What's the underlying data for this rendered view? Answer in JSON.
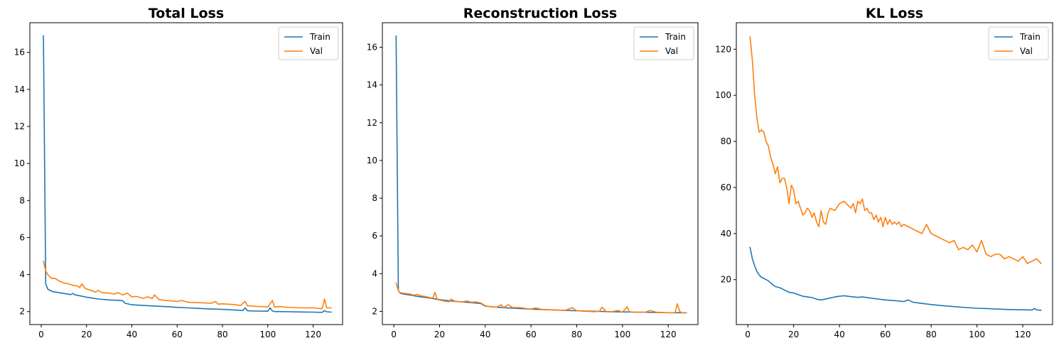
{
  "colors": {
    "train": "#1f77b4",
    "val": "#ff7f0e"
  },
  "chart_data": [
    {
      "type": "line",
      "title": "Total Loss",
      "xlim": [
        -5,
        133
      ],
      "ylim": [
        1.3,
        17.6
      ],
      "xticks": [
        0,
        20,
        40,
        60,
        80,
        100,
        120
      ],
      "yticks": [
        2,
        4,
        6,
        8,
        10,
        12,
        14,
        16
      ],
      "legend_position": "top-right",
      "series": [
        {
          "name": "Train",
          "color": "#1f77b4",
          "x": [
            1,
            2,
            3,
            5,
            7,
            10,
            12,
            13,
            14,
            15,
            16,
            20,
            25,
            30,
            35,
            36,
            37,
            40,
            45,
            50,
            55,
            60,
            65,
            70,
            75,
            80,
            85,
            89,
            90,
            91,
            92,
            95,
            100,
            101,
            102,
            103,
            105,
            110,
            115,
            120,
            124,
            125,
            126,
            128
          ],
          "y": [
            16.9,
            3.5,
            3.2,
            3.08,
            3.04,
            2.98,
            2.94,
            2.92,
            2.98,
            2.9,
            2.88,
            2.78,
            2.68,
            2.63,
            2.6,
            2.58,
            2.45,
            2.37,
            2.33,
            2.3,
            2.27,
            2.23,
            2.2,
            2.17,
            2.14,
            2.12,
            2.09,
            2.06,
            2.2,
            2.05,
            2.04,
            2.03,
            2.02,
            2.2,
            2.04,
            2.0,
            2.0,
            1.99,
            1.98,
            1.97,
            1.96,
            2.05,
            1.99,
            1.97
          ]
        },
        {
          "name": "Val",
          "color": "#ff7f0e",
          "x": [
            1,
            2,
            3,
            4,
            5,
            6,
            7,
            8,
            10,
            12,
            14,
            16,
            17,
            18,
            19,
            20,
            22,
            24,
            25,
            27,
            30,
            32,
            34,
            36,
            38,
            40,
            42,
            45,
            47,
            49,
            50,
            52,
            55,
            60,
            62,
            65,
            70,
            75,
            77,
            78,
            80,
            85,
            88,
            90,
            91,
            93,
            95,
            100,
            102,
            103,
            105,
            110,
            115,
            120,
            124,
            125,
            126,
            128
          ],
          "y": [
            4.72,
            4.2,
            3.98,
            3.85,
            3.78,
            3.8,
            3.72,
            3.65,
            3.55,
            3.5,
            3.42,
            3.38,
            3.3,
            3.5,
            3.3,
            3.22,
            3.15,
            3.05,
            3.15,
            3.02,
            3.0,
            2.95,
            3.02,
            2.9,
            3.0,
            2.8,
            2.82,
            2.72,
            2.8,
            2.7,
            2.9,
            2.65,
            2.6,
            2.55,
            2.6,
            2.5,
            2.48,
            2.45,
            2.55,
            2.4,
            2.42,
            2.38,
            2.33,
            2.55,
            2.32,
            2.3,
            2.28,
            2.25,
            2.6,
            2.25,
            2.27,
            2.22,
            2.2,
            2.2,
            2.15,
            2.68,
            2.2,
            2.2
          ]
        }
      ]
    },
    {
      "type": "line",
      "title": "Reconstruction Loss",
      "xlim": [
        -5,
        133
      ],
      "ylim": [
        1.3,
        17.3
      ],
      "xticks": [
        0,
        20,
        40,
        60,
        80,
        100,
        120
      ],
      "yticks": [
        2,
        4,
        6,
        8,
        10,
        12,
        14,
        16
      ],
      "legend_position": "top-right",
      "series": [
        {
          "name": "Train",
          "color": "#1f77b4",
          "x": [
            1,
            2,
            3,
            5,
            8,
            10,
            15,
            20,
            25,
            30,
            35,
            38,
            40,
            45,
            50,
            55,
            60,
            65,
            70,
            75,
            80,
            85,
            90,
            95,
            100,
            105,
            110,
            115,
            120,
            125,
            128
          ],
          "y": [
            16.6,
            3.1,
            2.95,
            2.9,
            2.85,
            2.8,
            2.72,
            2.62,
            2.55,
            2.5,
            2.45,
            2.42,
            2.28,
            2.22,
            2.18,
            2.15,
            2.12,
            2.1,
            2.07,
            2.05,
            2.03,
            2.01,
            2.0,
            1.98,
            1.97,
            1.96,
            1.95,
            1.94,
            1.93,
            1.93,
            1.92
          ]
        },
        {
          "name": "Val",
          "color": "#ff7f0e",
          "x": [
            1,
            2,
            3,
            5,
            7,
            9,
            10,
            12,
            14,
            16,
            17,
            18,
            19,
            20,
            22,
            24,
            25,
            27,
            30,
            32,
            34,
            36,
            38,
            40,
            42,
            45,
            47,
            48,
            50,
            52,
            55,
            58,
            60,
            62,
            65,
            70,
            75,
            78,
            80,
            85,
            88,
            90,
            91,
            93,
            95,
            98,
            100,
            102,
            103,
            105,
            110,
            112,
            115,
            120,
            123,
            124,
            125,
            126,
            128
          ],
          "y": [
            3.5,
            3.1,
            2.98,
            2.95,
            2.92,
            2.85,
            2.9,
            2.82,
            2.78,
            2.72,
            2.7,
            3.0,
            2.62,
            2.6,
            2.55,
            2.5,
            2.65,
            2.52,
            2.5,
            2.55,
            2.48,
            2.5,
            2.45,
            2.3,
            2.25,
            2.22,
            2.35,
            2.2,
            2.35,
            2.2,
            2.2,
            2.15,
            2.12,
            2.18,
            2.1,
            2.08,
            2.05,
            2.2,
            2.03,
            2.0,
            1.98,
            2.02,
            2.22,
            1.98,
            1.97,
            2.05,
            1.95,
            2.25,
            1.98,
            1.96,
            1.95,
            2.05,
            1.95,
            1.93,
            1.93,
            2.4,
            2.0,
            1.92,
            1.92
          ]
        }
      ]
    },
    {
      "type": "line",
      "title": "KL Loss",
      "xlim": [
        -5,
        133
      ],
      "ylim": [
        0.5,
        131.5
      ],
      "xticks": [
        0,
        20,
        40,
        60,
        80,
        100,
        120
      ],
      "yticks": [
        20,
        40,
        60,
        80,
        100,
        120
      ],
      "legend_position": "top-right",
      "series": [
        {
          "name": "Train",
          "color": "#1f77b4",
          "x": [
            1,
            2,
            3,
            4,
            5,
            6,
            7,
            8,
            9,
            10,
            12,
            14,
            16,
            18,
            20,
            22,
            24,
            26,
            28,
            30,
            32,
            35,
            38,
            40,
            42,
            45,
            48,
            50,
            55,
            60,
            65,
            68,
            70,
            72,
            75,
            80,
            85,
            90,
            95,
            100,
            105,
            110,
            115,
            120,
            124,
            125,
            126,
            128
          ],
          "y": [
            34,
            29,
            26,
            23.5,
            22,
            21,
            20.5,
            20,
            19.5,
            18.5,
            17,
            16.5,
            15.5,
            14.5,
            14.2,
            13.5,
            12.8,
            12.5,
            12.2,
            11.5,
            11.2,
            11.8,
            12.5,
            12.8,
            13,
            12.6,
            12.3,
            12.5,
            11.8,
            11.2,
            10.8,
            10.5,
            11.2,
            10.2,
            9.8,
            9.2,
            8.7,
            8.3,
            7.9,
            7.6,
            7.4,
            7.2,
            7,
            6.9,
            6.8,
            7.5,
            6.9,
            6.7
          ]
        },
        {
          "name": "Val",
          "color": "#ff7f0e",
          "x": [
            1,
            2,
            3,
            4,
            5,
            6,
            7,
            8,
            9,
            10,
            11,
            12,
            13,
            14,
            15,
            16,
            17,
            18,
            19,
            20,
            21,
            22,
            23,
            24,
            25,
            26,
            27,
            28,
            29,
            30,
            31,
            32,
            33,
            34,
            35,
            36,
            38,
            40,
            42,
            44,
            45,
            46,
            47,
            48,
            49,
            50,
            51,
            52,
            53,
            54,
            55,
            56,
            57,
            58,
            59,
            60,
            61,
            62,
            63,
            64,
            65,
            66,
            67,
            68,
            70,
            72,
            74,
            76,
            78,
            80,
            82,
            84,
            86,
            88,
            90,
            92,
            94,
            96,
            98,
            100,
            102,
            104,
            106,
            108,
            110,
            112,
            114,
            116,
            118,
            120,
            122,
            124,
            126,
            128
          ],
          "y": [
            125.5,
            115,
            100,
            90,
            84,
            85,
            84,
            80,
            78,
            73,
            70,
            66,
            69,
            62,
            64,
            64,
            60,
            53,
            61,
            59,
            53,
            54,
            51,
            48,
            49,
            51,
            50,
            47,
            49,
            45,
            43,
            50,
            45,
            44,
            49,
            51,
            50,
            53,
            54,
            52,
            51,
            53,
            49,
            54,
            53,
            55,
            50,
            51,
            49,
            49,
            46,
            48,
            45,
            47,
            43,
            47,
            44,
            46,
            44,
            45,
            44,
            45,
            43,
            44,
            43,
            42,
            41,
            40,
            44,
            40,
            39,
            38,
            37,
            36,
            37,
            33,
            34,
            33,
            35,
            32,
            37,
            31,
            30,
            31,
            31,
            29,
            30,
            29,
            28,
            30,
            27,
            28,
            29,
            27
          ]
        }
      ]
    }
  ]
}
